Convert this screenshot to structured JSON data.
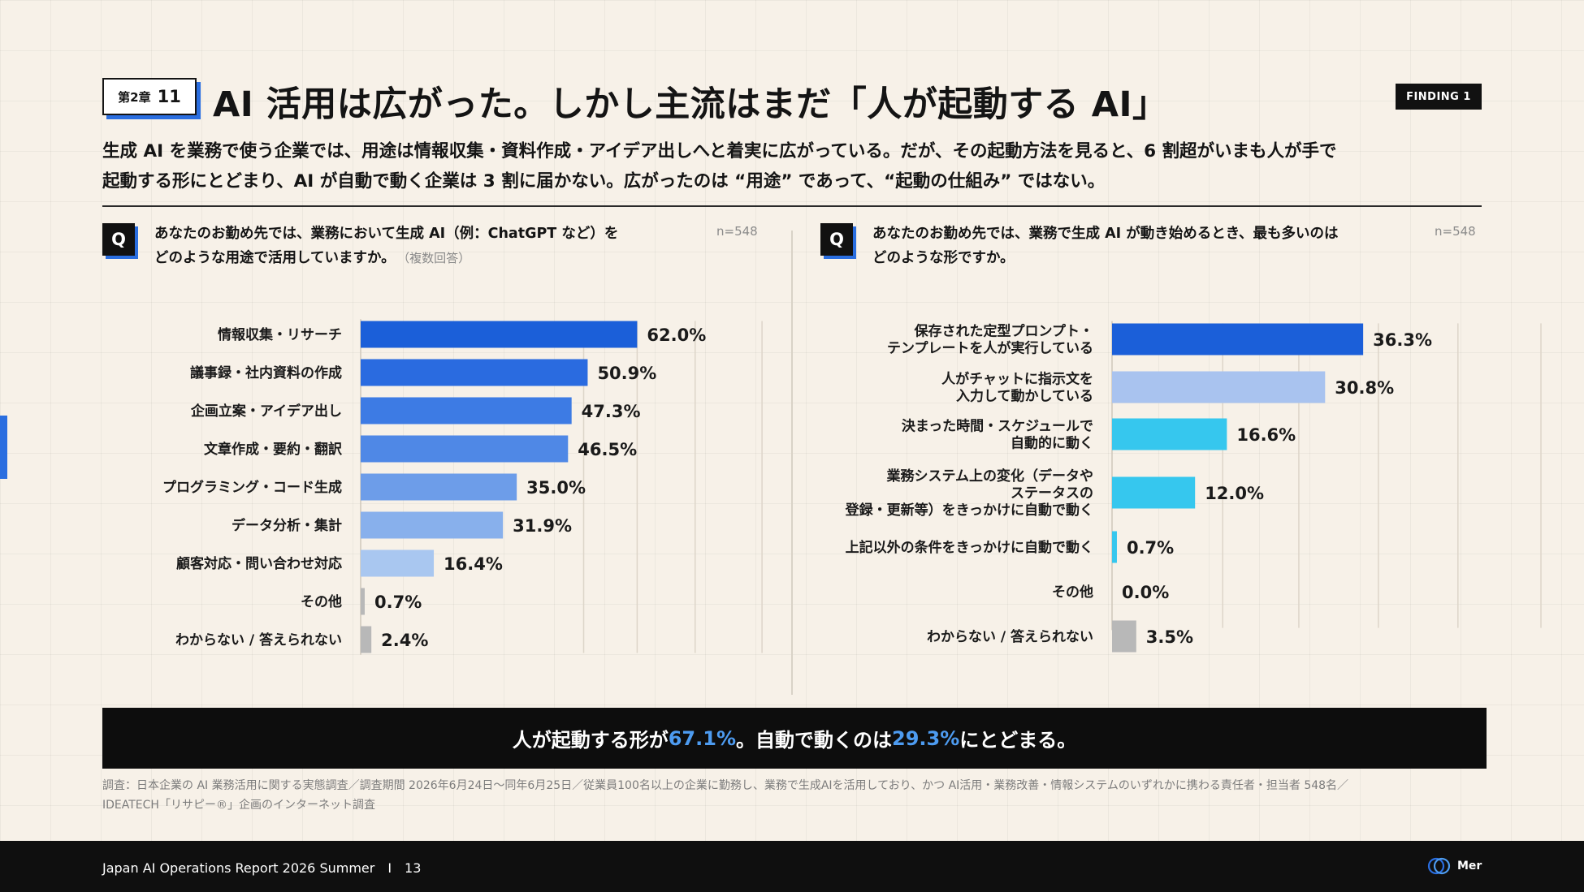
{
  "colors": {
    "accent": "#2a6ee0",
    "side_accent": "#2a6ee0",
    "highlight": "#4d9bf0",
    "background": "#f7f1e8"
  },
  "header": {
    "chapter_label": "第2章",
    "chapter_number": "11",
    "title": "AI 活用は広がった。しかし主流はまだ「人が起動する AI」",
    "finding_badge": "FINDING 1",
    "lead_line1": "生成 AI を業務で使う企業では、用途は情報収集・資料作成・アイデア出しへと着実に広がっている。だが、その起動方法を見ると、6 割超がいまも人が手で",
    "lead_line2": "起動する形にとどまり、AI が自動で動く企業は 3 割に届かない。広がったのは “用途” であって、“起動の仕組み” ではない。"
  },
  "left_panel": {
    "q_icon": "Q",
    "question_line1": "あなたのお勤め先では、業務において生成 AI（例：ChatGPT など）を",
    "question_line2": "どのような用途で活用していますか。",
    "question_note": "（複数回答）",
    "n_label": "n=548"
  },
  "right_panel": {
    "q_icon": "Q",
    "question_line1": "あなたのお勤め先では、業務で生成 AI が動き始めるとき、最も多いのは",
    "question_line2": "どのような形ですか。",
    "n_label": "n=548"
  },
  "chart_data": [
    {
      "type": "bar",
      "orientation": "horizontal",
      "unit": "%",
      "xlim": [
        0,
        100
      ],
      "grid": true,
      "categories": [
        [
          "情報収集・リサーチ"
        ],
        [
          "議事録・社内資料の作成"
        ],
        [
          "企画立案・アイデア出し"
        ],
        [
          "文章作成・要約・翻訳"
        ],
        [
          "プログラミング・コード生成"
        ],
        [
          "データ分析・集計"
        ],
        [
          "顧客対応・問い合わせ対応"
        ],
        [
          "その他"
        ],
        [
          "わからない / 答えられない"
        ]
      ],
      "values": [
        62.0,
        50.9,
        47.3,
        46.5,
        35.0,
        31.9,
        16.4,
        0.7,
        2.4
      ],
      "value_labels": [
        "62.0%",
        "50.9%",
        "47.3%",
        "46.5%",
        "35.0%",
        "31.9%",
        "16.4%",
        "0.7%",
        "2.4%"
      ],
      "colors": [
        "#1b5fd9",
        "#2a6be0",
        "#3d7be4",
        "#4f88e6",
        "#6d9de9",
        "#88b0ec",
        "#a9c7f0",
        "#b8b8b8",
        "#b8b8b8"
      ]
    },
    {
      "type": "bar",
      "orientation": "horizontal",
      "unit": "%",
      "xlim": [
        0,
        62
      ],
      "grid": true,
      "categories": [
        [
          "保存された定型プロンプト・",
          "テンプレートを人が実行している"
        ],
        [
          "人がチャットに指示文を",
          "入力して動かしている"
        ],
        [
          "決まった時間・スケジュールで",
          "自動的に動く"
        ],
        [
          "業務システム上の変化（データや",
          "ステータスの",
          "登録・更新等）をきっかけに自動で動く"
        ],
        [
          "上記以外の条件をきっかけに自動で動く"
        ],
        [
          "その他"
        ],
        [
          "わからない / 答えられない"
        ]
      ],
      "values": [
        36.3,
        30.8,
        16.6,
        12.0,
        0.7,
        0.0,
        3.5
      ],
      "value_labels": [
        "36.3%",
        "30.8%",
        "16.6%",
        "12.0%",
        "0.7%",
        "0.0%",
        "3.5%"
      ],
      "colors": [
        "#1b5fd9",
        "#a9c3ef",
        "#36c7ee",
        "#36c7ee",
        "#36c7ee",
        "#b8b8b8",
        "#b8b8b8"
      ]
    }
  ],
  "summary": {
    "part1": "人が起動する形が ",
    "value1": "67.1%",
    "part2": "。自動で動くのは ",
    "value2": "29.3%",
    "part3": " にとどまる。"
  },
  "note": {
    "line1": "調査：日本企業の AI 業務活用に関する実態調査／調査期間 2026年6月24日〜同年6月25日／従業員100名以上の企業に勤務し、業務で生成AIを活用しており、かつ AI活用・業務改善・情報システムのいずれかに携わる責任者・担当者 548名／",
    "line2": "IDEATECH「リサピー®」企画のインターネット調査"
  },
  "footer": {
    "report_name": "Japan AI Operations Report 2026 Summer",
    "separator": "I",
    "page_number": "13",
    "logo_text": "Mer",
    "logo_icon": "circles-logo-icon"
  }
}
